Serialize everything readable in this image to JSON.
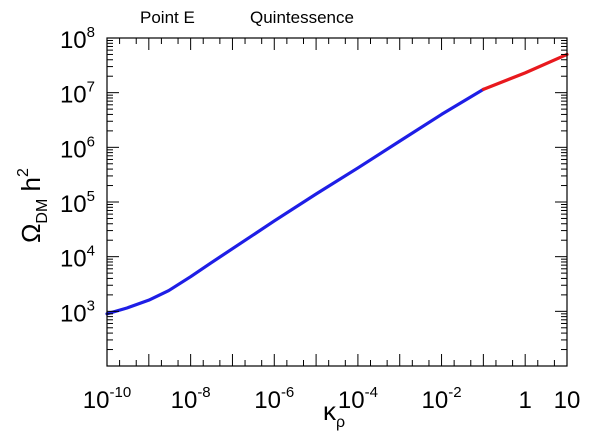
{
  "header": {
    "point_label": "Point E",
    "model_label": "Quintessence"
  },
  "chart_data": {
    "type": "line",
    "title": "",
    "xlabel": {
      "symbol": "κ",
      "subscript": "ρ"
    },
    "ylabel": {
      "symbol": "Ω",
      "subscript": "DM",
      "suffix": " h",
      "superscript": "2"
    },
    "x_scale": "log",
    "y_scale": "log",
    "xlim": [
      1e-10,
      10
    ],
    "ylim": [
      100,
      100000000
    ],
    "grid": false,
    "x_ticks": [
      {
        "value": 1e-10,
        "base": "10",
        "exp": "-10"
      },
      {
        "value": 1e-08,
        "base": "10",
        "exp": "-8"
      },
      {
        "value": 1e-06,
        "base": "10",
        "exp": "-6"
      },
      {
        "value": 0.0001,
        "base": "10",
        "exp": "-4"
      },
      {
        "value": 0.01,
        "base": "10",
        "exp": "-2"
      },
      {
        "value": 1,
        "base": "1",
        "exp": ""
      },
      {
        "value": 10,
        "base": "10",
        "exp": ""
      }
    ],
    "y_ticks": [
      {
        "value": 1000,
        "base": "10",
        "exp": "3"
      },
      {
        "value": 10000,
        "base": "10",
        "exp": "4"
      },
      {
        "value": 100000,
        "base": "10",
        "exp": "5"
      },
      {
        "value": 1000000,
        "base": "10",
        "exp": "6"
      },
      {
        "value": 10000000,
        "base": "10",
        "exp": "7"
      },
      {
        "value": 100000000,
        "base": "10",
        "exp": "8"
      }
    ],
    "series": [
      {
        "color": "#1e1ee6",
        "x": [
          1e-10,
          3e-10,
          1e-09,
          3e-09,
          1e-08,
          3e-08,
          1e-07,
          1e-06,
          1e-05,
          0.0001,
          0.001,
          0.01,
          0.1
        ],
        "y": [
          900,
          1150,
          1600,
          2400,
          4300,
          7600,
          14000,
          45000,
          140000,
          420000,
          1300000,
          4000000,
          11500000
        ]
      },
      {
        "color": "#e8191e",
        "x": [
          0.1,
          1,
          10
        ],
        "y": [
          11500000,
          23000000,
          50000000
        ]
      }
    ]
  }
}
